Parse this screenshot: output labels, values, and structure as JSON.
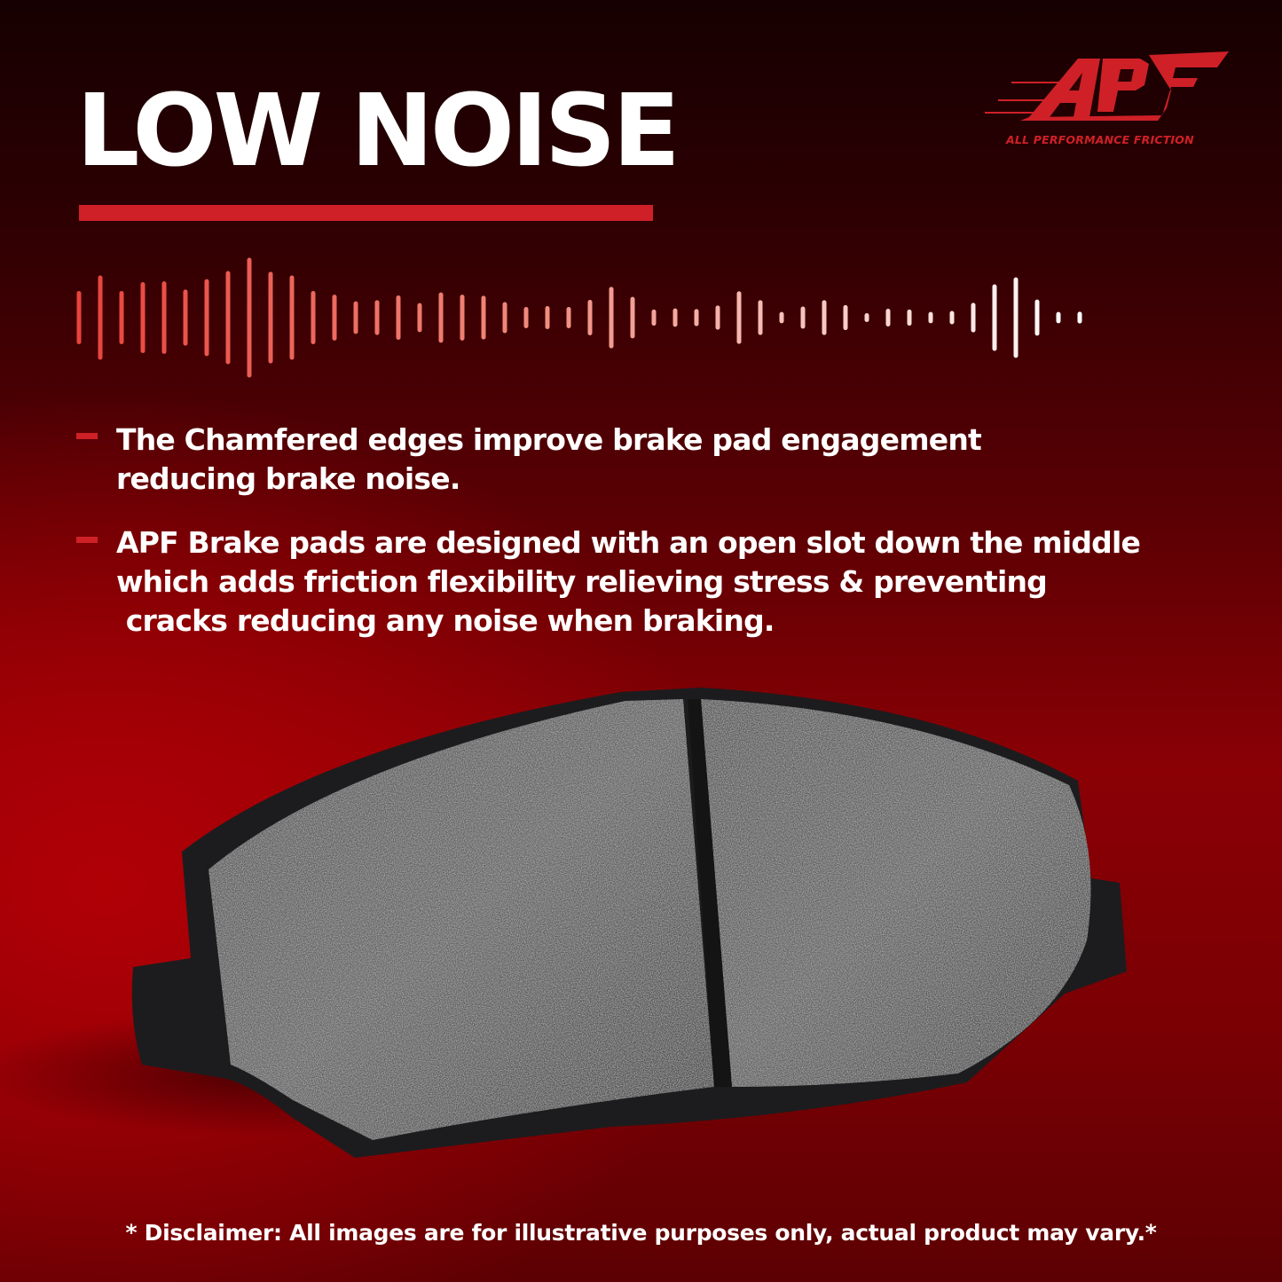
{
  "header": {
    "title": "LOW NOISE"
  },
  "logo": {
    "wordmark": "APF",
    "tagline": "ALL PERFORMANCE FRICTION",
    "color": "#cf2027"
  },
  "bullets": [
    {
      "text": "The Chamfered edges improve brake pad engagement\nreducing brake noise."
    },
    {
      "text": "APF Brake pads are designed with an open slot down the middle\nwhich adds friction flexibility relieving stress & preventing\n cracks reducing any noise when braking."
    }
  ],
  "footer": {
    "disclaimer": "* Disclaimer: All images are for illustrative purposes only, actual product may vary.*"
  },
  "colors": {
    "accent": "#cf2027",
    "background": "#8a0005",
    "text": "#ffffff"
  }
}
